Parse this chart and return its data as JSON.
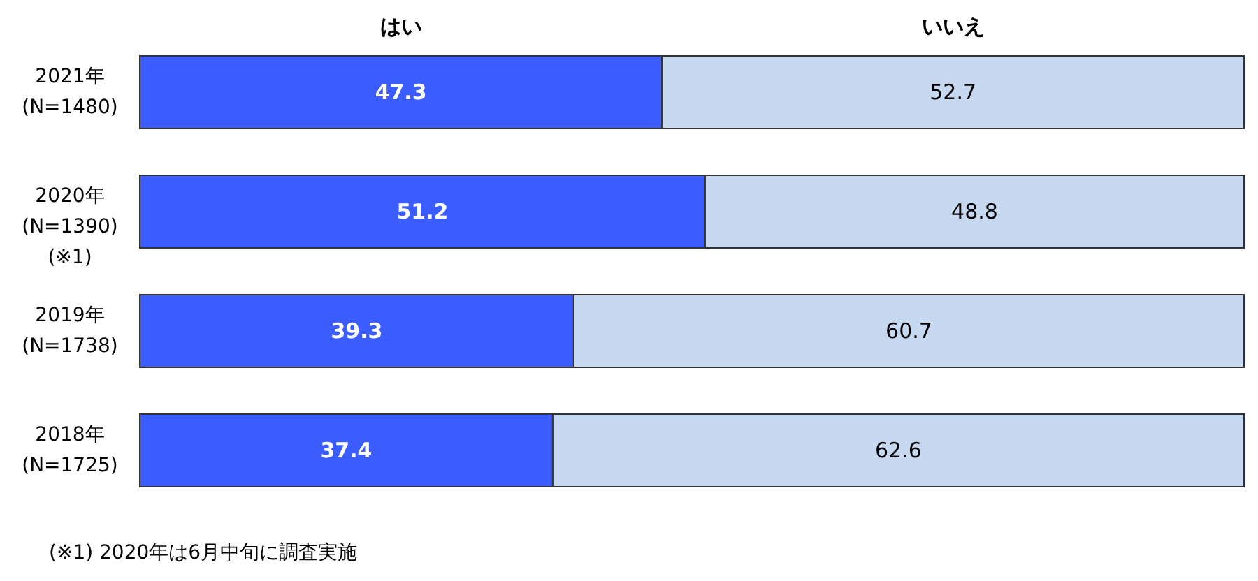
{
  "chart_data": {
    "type": "bar",
    "orientation": "horizontal",
    "stacked": true,
    "categories": [
      "2021年\n(N=1480)",
      "2020年\n(N=1390)\n(※1)",
      "2019年\n(N=1738)",
      "2018年\n(N=1725)"
    ],
    "series": [
      {
        "name": "はい",
        "color": "#3b5cff",
        "values": [
          47.3,
          51.2,
          39.3,
          37.4
        ]
      },
      {
        "name": "いいえ",
        "color": "#c6d9f1",
        "values": [
          52.7,
          48.8,
          60.7,
          62.6
        ]
      }
    ],
    "xlim": [
      0,
      100
    ],
    "data_labels": true,
    "legend": "top",
    "annotations": [
      "(※1) 2020年は6月中旬に調査実施"
    ]
  }
}
